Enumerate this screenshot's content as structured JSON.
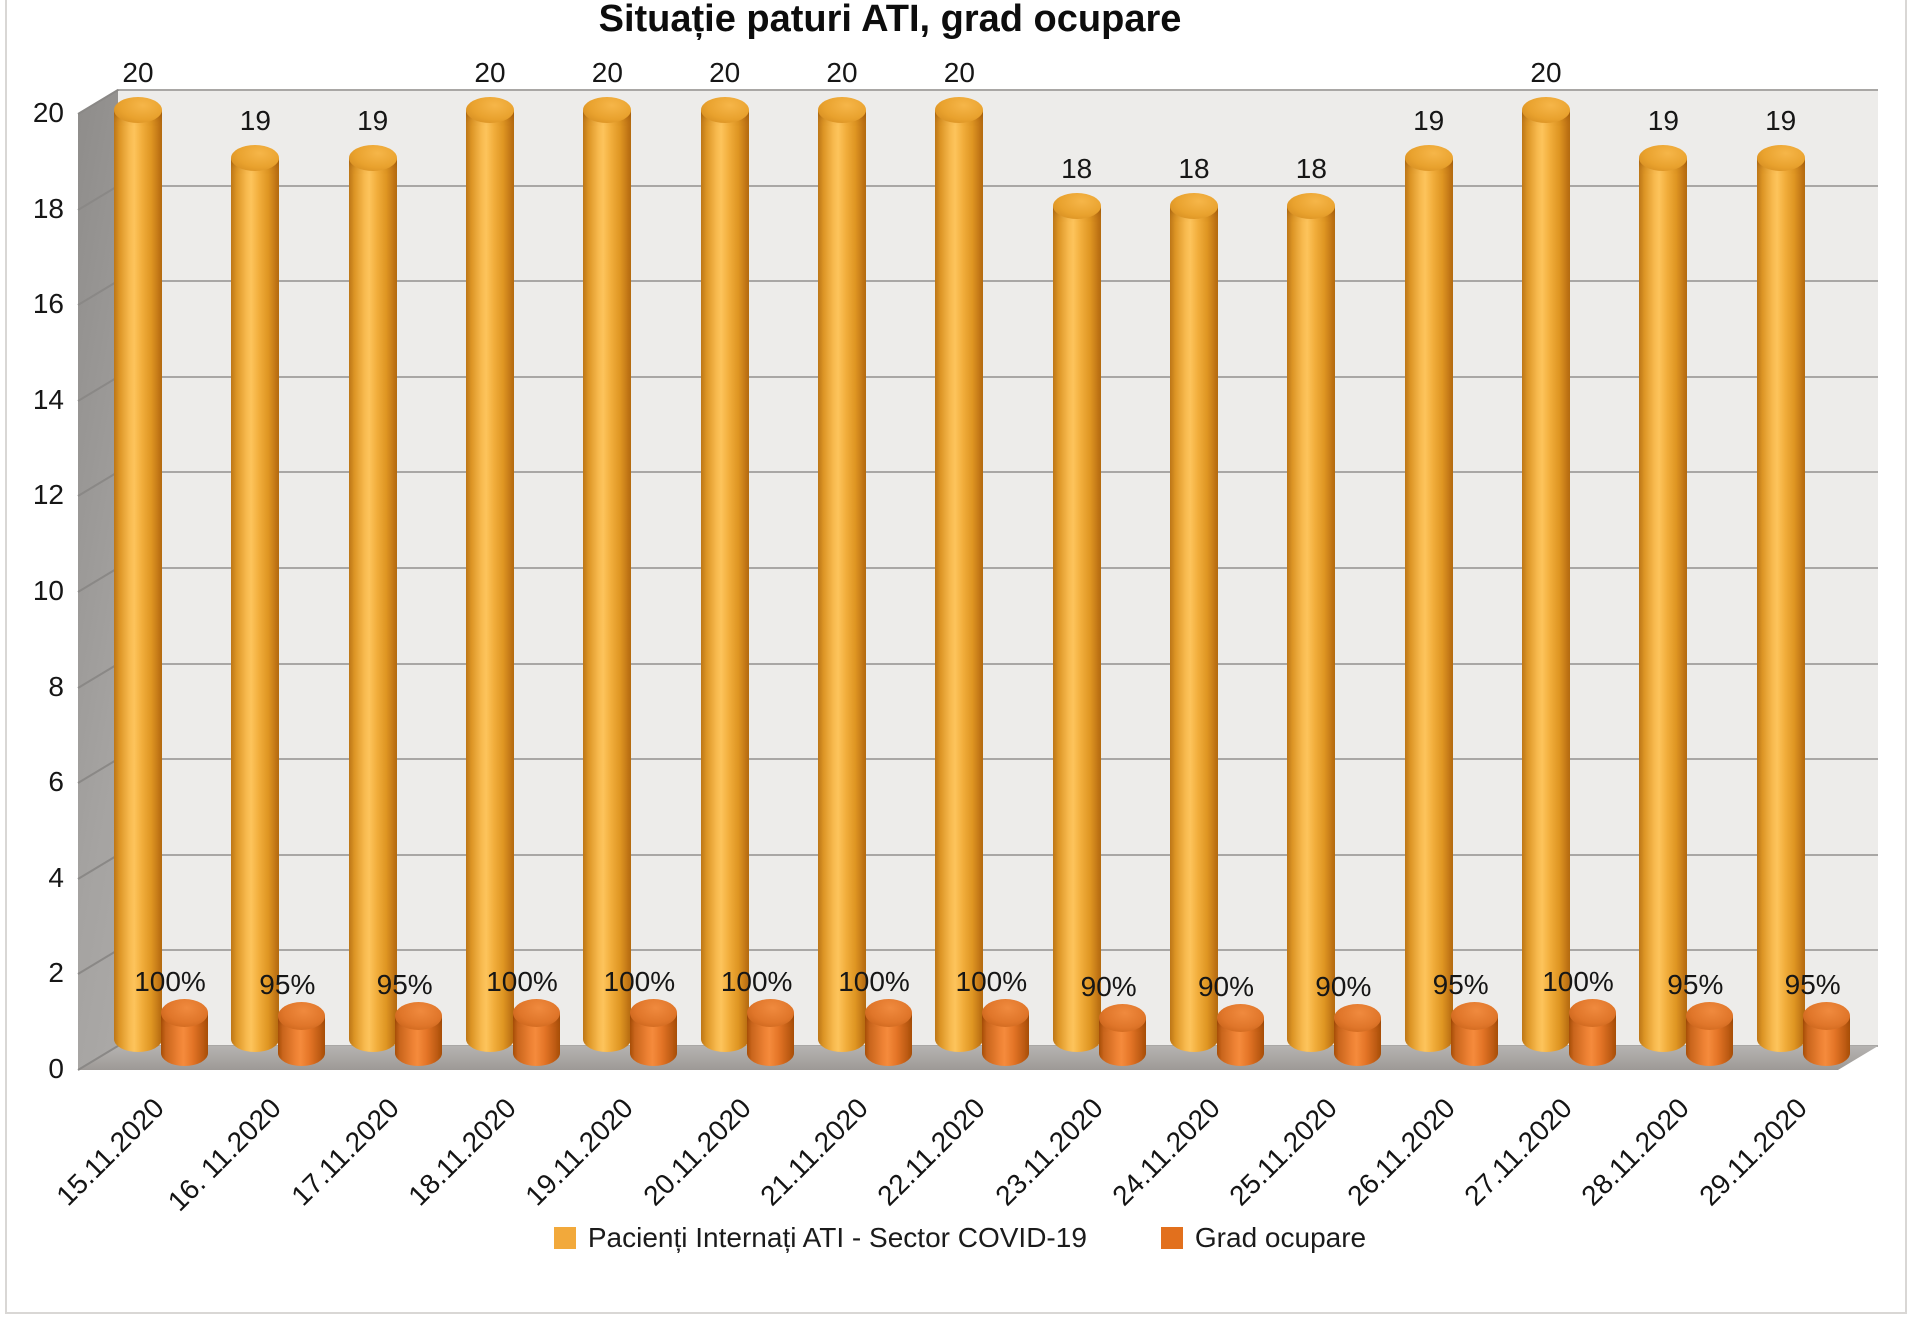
{
  "title": "Situație paturi ATI, grad ocupare",
  "chart_data": {
    "type": "bar",
    "subtype": "3d-cylinder",
    "title": "Situație paturi ATI, grad ocupare",
    "xlabel": "",
    "ylabel": "",
    "ylim": [
      0,
      20
    ],
    "y_ticks": [
      0,
      2,
      4,
      6,
      8,
      10,
      12,
      14,
      16,
      18,
      20
    ],
    "grid": true,
    "legend_position": "bottom",
    "categories": [
      "15.11.2020",
      "16. 11.2020",
      "17.11.2020",
      "18.11.2020",
      "19.11.2020",
      "20.11.2020",
      "21.11.2020",
      "22.11.2020",
      "23.11.2020",
      "24.11.2020",
      "25.11.2020",
      "26.11.2020",
      "27.11.2020",
      "28.11.2020",
      "29.11.2020"
    ],
    "series": [
      {
        "name": "Pacienți Internați ATI - Sector COVID-19",
        "color": "#f2a93b",
        "values": [
          20,
          19,
          19,
          20,
          20,
          20,
          20,
          20,
          18,
          18,
          18,
          19,
          20,
          19,
          19
        ]
      },
      {
        "name": "Grad ocupare",
        "color": "#e2701d",
        "values_percent": [
          100,
          95,
          95,
          100,
          100,
          100,
          100,
          100,
          90,
          90,
          90,
          95,
          100,
          95,
          95
        ],
        "labels": [
          "100%",
          "95%",
          "95%",
          "100%",
          "100%",
          "100%",
          "100%",
          "100%",
          "90%",
          "90%",
          "90%",
          "95%",
          "100%",
          "95%",
          "95%"
        ]
      }
    ]
  },
  "colors": {
    "back_wall": "#edecea",
    "gridline": "#a9a7a5",
    "floor": "#aba8a5",
    "big_cylinder": "#f2a93b",
    "small_cylinder": "#e2701d"
  }
}
